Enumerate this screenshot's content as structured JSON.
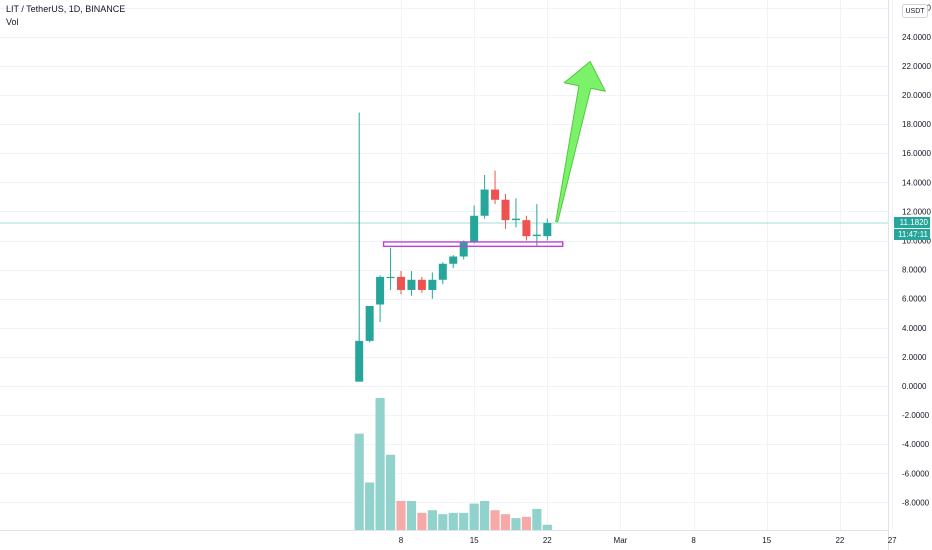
{
  "header": {
    "symbol": "LIT / TetherUS, 1D, BINANCE",
    "indicator": "Vol"
  },
  "currency_button": "USDT",
  "last_price": {
    "value": "11.1820",
    "countdown": "11:47:11"
  },
  "colors": {
    "up": "#26a69a",
    "down": "#ef5350",
    "vol_up": "#92d2cc",
    "vol_down": "#f7a9a7",
    "zone": "#c040d8",
    "arrow_fill": "#7cf26a",
    "arrow_stroke": "#4fc93e",
    "price_line": "#a6dcd7"
  },
  "chart_data": {
    "type": "candlestick",
    "y_axis": {
      "range": [
        -9.5,
        26
      ],
      "ticks": [
        "26.0000",
        "24.0000",
        "22.0000",
        "20.0000",
        "18.0000",
        "16.0000",
        "14.0000",
        "12.0000",
        "10.0000",
        "8.0000",
        "6.0000",
        "4.0000",
        "2.0000",
        "0.0000",
        "-2.0000",
        "-4.0000",
        "-6.0000",
        "-8.0000"
      ]
    },
    "x_axis": {
      "ticks": [
        {
          "label": "8",
          "day": 8
        },
        {
          "label": "15",
          "day": 15
        },
        {
          "label": "22",
          "day": 22
        },
        {
          "label": "Mar",
          "day": 29
        },
        {
          "label": "8",
          "day": 36
        },
        {
          "label": "15",
          "day": 43
        },
        {
          "label": "22",
          "day": 50
        },
        {
          "label": "27",
          "day": 55
        }
      ]
    },
    "candles": [
      {
        "day": 4,
        "o": 0.3,
        "h": 18.8,
        "l": 0.3,
        "c": 3.1
      },
      {
        "day": 5,
        "o": 3.1,
        "h": 5.5,
        "l": 3.0,
        "c": 5.5
      },
      {
        "day": 6,
        "o": 5.6,
        "h": 7.6,
        "l": 4.4,
        "c": 7.5
      },
      {
        "day": 7,
        "o": 7.5,
        "h": 9.5,
        "l": 6.6,
        "c": 7.5
      },
      {
        "day": 8,
        "o": 7.5,
        "h": 7.9,
        "l": 6.3,
        "c": 6.6
      },
      {
        "day": 9,
        "o": 6.6,
        "h": 7.9,
        "l": 6.2,
        "c": 7.3
      },
      {
        "day": 10,
        "o": 7.3,
        "h": 7.5,
        "l": 6.4,
        "c": 6.6
      },
      {
        "day": 11,
        "o": 6.6,
        "h": 7.8,
        "l": 6.0,
        "c": 7.3
      },
      {
        "day": 12,
        "o": 7.3,
        "h": 8.5,
        "l": 7.0,
        "c": 8.4
      },
      {
        "day": 13,
        "o": 8.4,
        "h": 9.0,
        "l": 8.1,
        "c": 8.9
      },
      {
        "day": 14,
        "o": 8.9,
        "h": 10.0,
        "l": 8.7,
        "c": 9.9
      },
      {
        "day": 15,
        "o": 9.9,
        "h": 12.4,
        "l": 9.8,
        "c": 11.7
      },
      {
        "day": 16,
        "o": 11.7,
        "h": 14.5,
        "l": 11.5,
        "c": 13.5
      },
      {
        "day": 17,
        "o": 13.5,
        "h": 14.8,
        "l": 12.5,
        "c": 12.8
      },
      {
        "day": 18,
        "o": 12.8,
        "h": 13.2,
        "l": 10.8,
        "c": 11.4
      },
      {
        "day": 19,
        "o": 11.4,
        "h": 12.9,
        "l": 10.9,
        "c": 11.5
      },
      {
        "day": 20,
        "o": 11.4,
        "h": 11.7,
        "l": 10.0,
        "c": 10.3
      },
      {
        "day": 21,
        "o": 10.3,
        "h": 12.5,
        "l": 9.6,
        "c": 10.4
      },
      {
        "day": 22,
        "o": 10.3,
        "h": 11.5,
        "l": 10.0,
        "c": 11.2
      }
    ],
    "volume_relative": [
      0.73,
      0.36,
      1.0,
      0.57,
      0.22,
      0.22,
      0.13,
      0.15,
      0.12,
      0.13,
      0.13,
      0.2,
      0.22,
      0.15,
      0.12,
      0.09,
      0.1,
      0.16,
      0.04
    ],
    "support_zone": {
      "from_day": 7,
      "to_day": 23,
      "low": 9.6,
      "high": 9.9
    },
    "projection_arrow": {
      "from_day": 23,
      "from_price": 11.5,
      "to_day": 26,
      "to_price": 22.3
    }
  }
}
